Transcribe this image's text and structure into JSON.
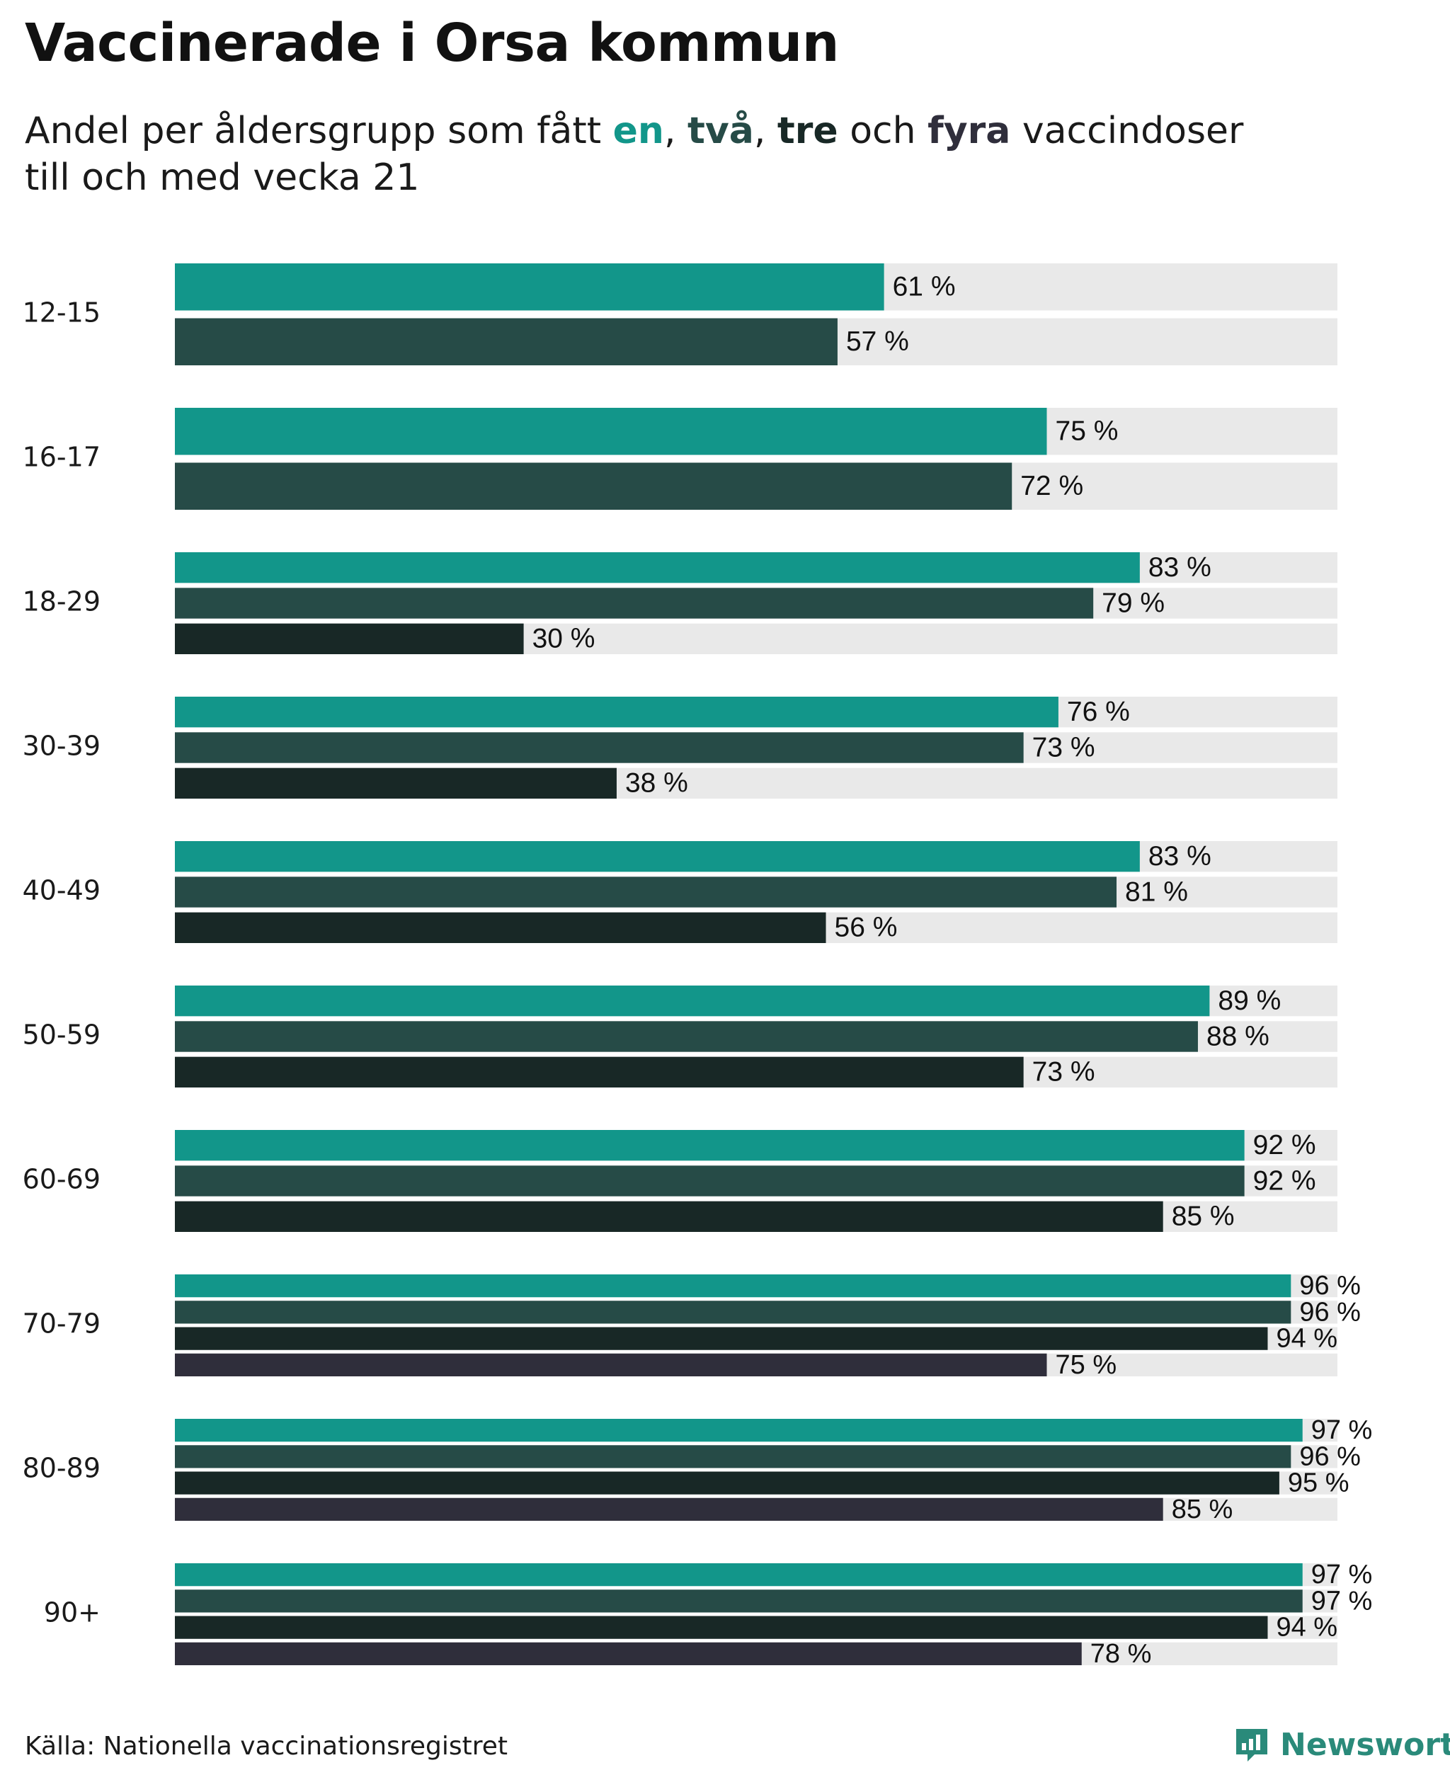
{
  "title": "Vaccinerade i Orsa kommun",
  "subtitle": {
    "prefix": "Andel per åldersgrupp som fått ",
    "dose1_word": "en",
    "sep1": ", ",
    "dose2_word": "två",
    "sep2": ", ",
    "dose3_word": "tre",
    "conj": " och ",
    "dose4_word": "fyra",
    "suffix": " vaccindoser",
    "line2": "till och med vecka 21"
  },
  "source": "Källa: Nationella vaccinationsregistret",
  "brand": "Newsworthy",
  "colors": {
    "dose1": "#12968a",
    "dose2": "#264b47",
    "dose3": "#182826",
    "dose4": "#2f2e3b",
    "track": "#e9e9e9"
  },
  "chart_data": {
    "type": "bar",
    "orientation": "horizontal",
    "xlim": [
      0,
      100
    ],
    "value_suffix": " %",
    "categories": [
      "12-15",
      "16-17",
      "18-29",
      "30-39",
      "40-49",
      "50-59",
      "60-69",
      "70-79",
      "80-89",
      "90+"
    ],
    "series": [
      {
        "name": "en",
        "values": [
          61,
          75,
          83,
          76,
          83,
          89,
          92,
          96,
          97,
          97
        ]
      },
      {
        "name": "två",
        "values": [
          57,
          72,
          79,
          73,
          81,
          88,
          92,
          96,
          96,
          97
        ]
      },
      {
        "name": "tre",
        "values": [
          null,
          null,
          30,
          38,
          56,
          73,
          85,
          94,
          95,
          94
        ]
      },
      {
        "name": "fyra",
        "values": [
          null,
          null,
          null,
          null,
          null,
          null,
          null,
          75,
          85,
          78
        ]
      }
    ]
  }
}
